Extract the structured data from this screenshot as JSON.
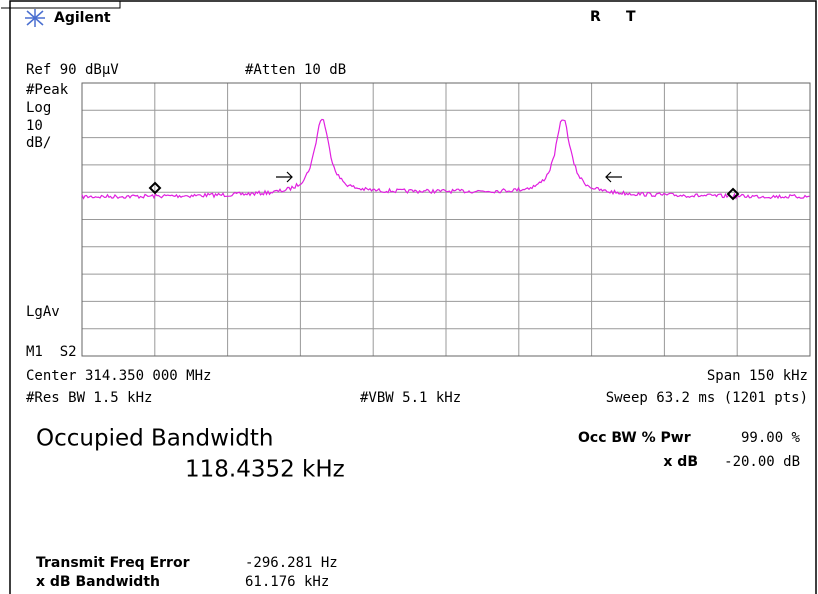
{
  "header": {
    "brand": "Agilent",
    "status": [
      "R",
      "T"
    ]
  },
  "display": {
    "ref": "Ref 90 dBµV",
    "atten": "#Atten 10 dB",
    "left_labels": [
      "#Peak",
      "Log",
      "10",
      "dB/"
    ],
    "lgav": "LgAv",
    "m1s2": "M1  S2"
  },
  "footer": {
    "center": "Center 314.350 000 MHz",
    "span": "Span 150 kHz",
    "res_bw": "#Res BW 1.5 kHz",
    "vbw": "#VBW 5.1 kHz",
    "sweep": "Sweep 63.2 ms (1201 pts)"
  },
  "results": {
    "title": "Occupied Bandwidth",
    "value": "118.4352 kHz",
    "occ_label": "Occ BW % Pwr",
    "occ_value": "99.00 %",
    "xdb_label": "x dB",
    "xdb_value": "-20.00 dB",
    "rows": [
      {
        "label": "Transmit Freq Error",
        "value": "-296.281 Hz"
      },
      {
        "label": "x dB Bandwidth",
        "value": "61.176 kHz"
      }
    ]
  }
}
